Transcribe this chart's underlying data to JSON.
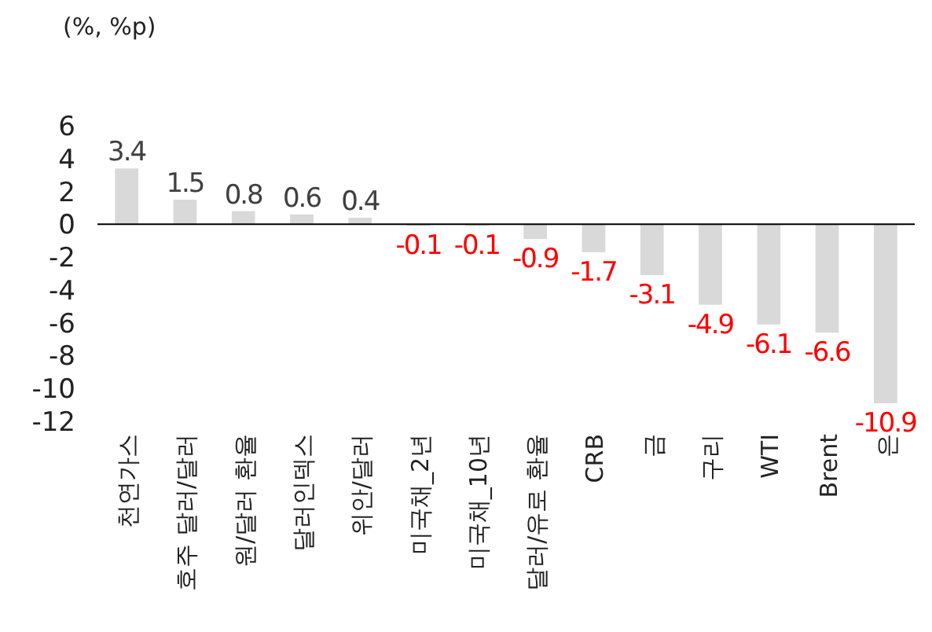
{
  "chart_data": {
    "type": "bar",
    "ylabel": "(%, %p)",
    "categories": [
      "천연가스",
      "호주 달러/달러",
      "원/달러 환율",
      "달러인덱스",
      "위안/달러",
      "미국채_2년",
      "미국채_10년",
      "달러/유로 환율",
      "CRB",
      "금",
      "구리",
      "WTI",
      "Brent",
      "은"
    ],
    "values": [
      3.4,
      1.5,
      0.8,
      0.6,
      0.4,
      -0.1,
      -0.1,
      -0.9,
      -1.7,
      -3.1,
      -4.9,
      -6.1,
      -6.6,
      -10.9
    ],
    "color": "#d9d9d9",
    "value_labels": [
      "3.4",
      "1.5",
      "0.8",
      "0.6",
      "0.4",
      "-0.1",
      "-0.1",
      "-0.9",
      "-1.7",
      "-3.1",
      "-4.9",
      "-6.1",
      "-6.6",
      "-10.9"
    ],
    "ylim": [
      -12,
      6
    ],
    "yticks": [
      -12,
      -10,
      -8,
      -6,
      -4,
      -2,
      0,
      2,
      4,
      6
    ]
  }
}
